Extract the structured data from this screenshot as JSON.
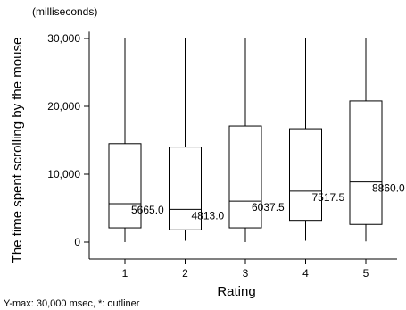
{
  "chart_data": {
    "type": "boxplot",
    "unit_label": "(milliseconds)",
    "ylabel": "The time spent scrolling by the mouse",
    "xlabel": "Rating",
    "note": "Y-max: 30,000 msec, *: outliner",
    "ylim": [
      -2000,
      31000
    ],
    "yticks": [
      0,
      10000,
      20000,
      30000
    ],
    "ytick_labels": [
      "0",
      "10,000",
      "20,000",
      "30,000"
    ],
    "categories": [
      "1",
      "2",
      "3",
      "4",
      "5"
    ],
    "boxes": [
      {
        "category": "1",
        "min": 0,
        "q1": 2100,
        "median": 5665.0,
        "q3": 14500,
        "max": 30000,
        "median_label": "5665.0"
      },
      {
        "category": "2",
        "min": 200,
        "q1": 1800,
        "median": 4813.0,
        "q3": 14000,
        "max": 30000,
        "median_label": "4813.0"
      },
      {
        "category": "3",
        "min": 0,
        "q1": 2100,
        "median": 6037.5,
        "q3": 17100,
        "max": 30000,
        "median_label": "6037.5"
      },
      {
        "category": "4",
        "min": 200,
        "q1": 3200,
        "median": 7517.5,
        "q3": 16700,
        "max": 30000,
        "median_label": "7517.5"
      },
      {
        "category": "5",
        "min": 100,
        "q1": 2600,
        "median": 8860.0,
        "q3": 20800,
        "max": 30000,
        "median_label": "8860.0"
      }
    ],
    "colors": {
      "stroke": "#000000",
      "fill": "#ffffff"
    }
  }
}
